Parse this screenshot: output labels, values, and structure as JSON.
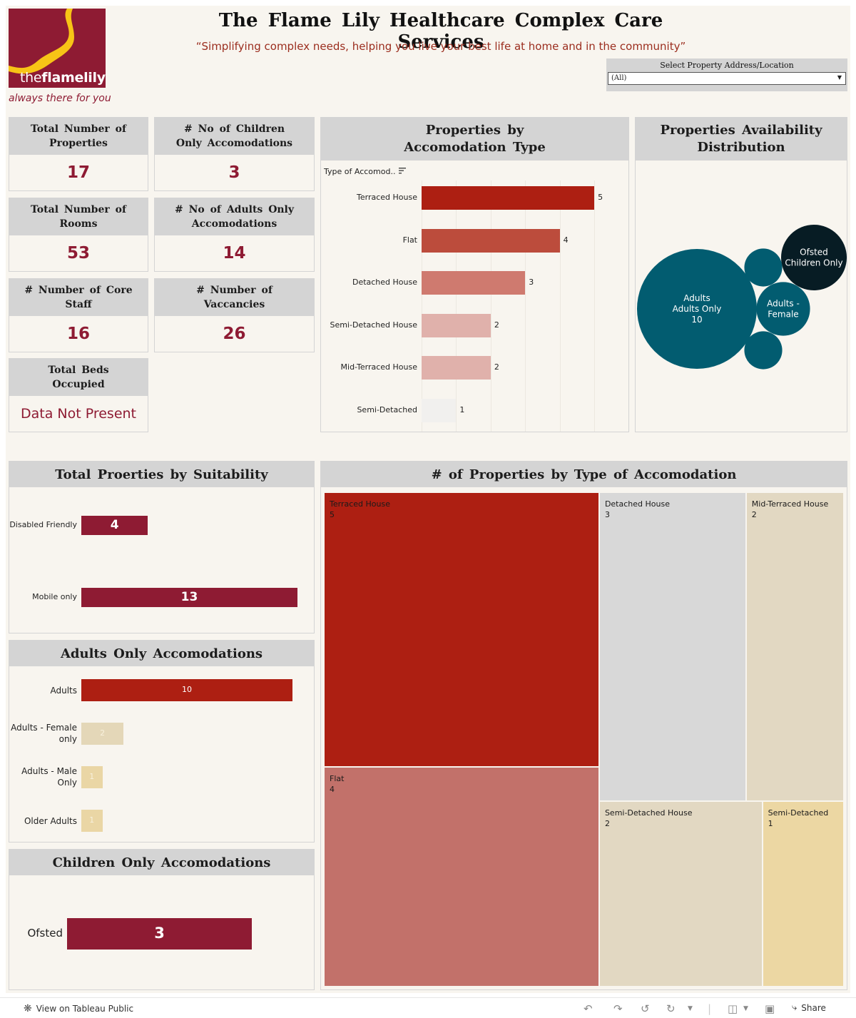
{
  "header": {
    "title": "The Flame Lily Healthcare Complex Care Services",
    "tagline": "“Simplifying complex needs, helping you live your best life at home and in the community”",
    "logo_wordmark_light": "the",
    "logo_wordmark_bold": "flamelily",
    "logo_registered": "®",
    "logo_slogan": "always there for you",
    "filter_label": "Select Property Address/Location",
    "filter_value": "(All)"
  },
  "kpis": [
    {
      "label": "Total Number of Properties",
      "value": "17"
    },
    {
      "label": "# No of Children Only Accomodations",
      "value": "3"
    },
    {
      "label": "Total Number of Rooms",
      "value": "53"
    },
    {
      "label": "# No of Adults Only Accomodations",
      "value": "14"
    },
    {
      "label": "# Number of Core Staff",
      "value": "16"
    },
    {
      "label": "# Number of Vaccancies",
      "value": "26"
    },
    {
      "label": "Total Beds Occupied",
      "value": "Data Not Present"
    }
  ],
  "colors": {
    "brand": "#8e1b33",
    "brand_yellow": "#f7c416",
    "header_gray": "#d4d4d4",
    "canvas": "#f8f5ef",
    "teal": "#025c70",
    "dark": "#071c24"
  },
  "chart_data": [
    {
      "id": "accom_type_bar",
      "type": "bar",
      "orientation": "horizontal",
      "title": "Properties by Accomodation Type",
      "field_label": "Type of Accomod..",
      "sort_icon": "sort-icon",
      "categories": [
        "Terraced House",
        "Flat",
        "Detached House",
        "Semi-Detached House",
        "Mid-Terraced House",
        "Semi-Detached"
      ],
      "values": [
        5,
        4,
        3,
        2,
        2,
        1
      ],
      "colors": [
        "#ad1f12",
        "#bc4c3c",
        "#cf7a6f",
        "#e0b1ab",
        "#e0b1ab",
        "#f1f0ee"
      ],
      "xlim": [
        0,
        5.7
      ],
      "grid": true
    },
    {
      "id": "availability_bubbles",
      "type": "scatter",
      "subtype": "packed-bubble",
      "title": "Properties Availability Distribution",
      "bubbles": [
        {
          "line1": "Adults",
          "line2": "Adults Only",
          "line3": "10",
          "value": 10,
          "color": "#025c70"
        },
        {
          "line1": "Ofsted",
          "line2": "Children Only",
          "line3": "",
          "value": 3,
          "color": "#071c24"
        },
        {
          "line1": "Adults -",
          "line2": "Female",
          "line3": "",
          "value": 2,
          "color": "#025c70"
        },
        {
          "line1": "",
          "line2": "",
          "line3": "",
          "value": 1,
          "color": "#025c70"
        },
        {
          "line1": "",
          "line2": "",
          "line3": "",
          "value": 1,
          "color": "#025c70"
        }
      ]
    },
    {
      "id": "suitability_bar",
      "type": "bar",
      "orientation": "horizontal",
      "title": "Total Proerties by Suitability",
      "categories": [
        "Disabled Friendly",
        "Mobile only"
      ],
      "values": [
        4,
        13
      ],
      "color": "#8e1b33",
      "xlim": [
        0,
        13.2
      ]
    },
    {
      "id": "adults_bar",
      "type": "bar",
      "orientation": "horizontal",
      "title": "Adults Only Accomodations",
      "categories": [
        "Adults",
        "Adults - Female only",
        "Adults - Male Only",
        "Older Adults"
      ],
      "values": [
        10,
        2,
        1,
        1
      ],
      "colors": [
        "#ad1f12",
        "#e4d7b8",
        "#ead6a5",
        "#ead6a5"
      ],
      "xlim": [
        0,
        10.2
      ]
    },
    {
      "id": "children_bar",
      "type": "bar",
      "orientation": "horizontal",
      "title": "Children Only Accomodations",
      "categories": [
        "Ofsted"
      ],
      "values": [
        3
      ],
      "color": "#8e1b33",
      "xlim": [
        0,
        3
      ]
    },
    {
      "id": "accom_treemap",
      "type": "heatmap",
      "subtype": "treemap",
      "title": "# of Properties by Type of Accomodation",
      "cells": [
        {
          "label": "Terraced House",
          "value": 5,
          "color": "#ad1f12"
        },
        {
          "label": "Flat",
          "value": 4,
          "color": "#c2716a"
        },
        {
          "label": "Detached House",
          "value": 3,
          "color": "#d8d8d8"
        },
        {
          "label": "Mid-Terraced House",
          "value": 2,
          "color": "#e2d8c2"
        },
        {
          "label": "Semi-Detached House",
          "value": 2,
          "color": "#e2d8c2"
        },
        {
          "label": "Semi-Detached",
          "value": 1,
          "color": "#ecd7a3"
        }
      ]
    }
  ],
  "footer": {
    "view_link": "View on Tableau Public",
    "share_label": "Share"
  }
}
